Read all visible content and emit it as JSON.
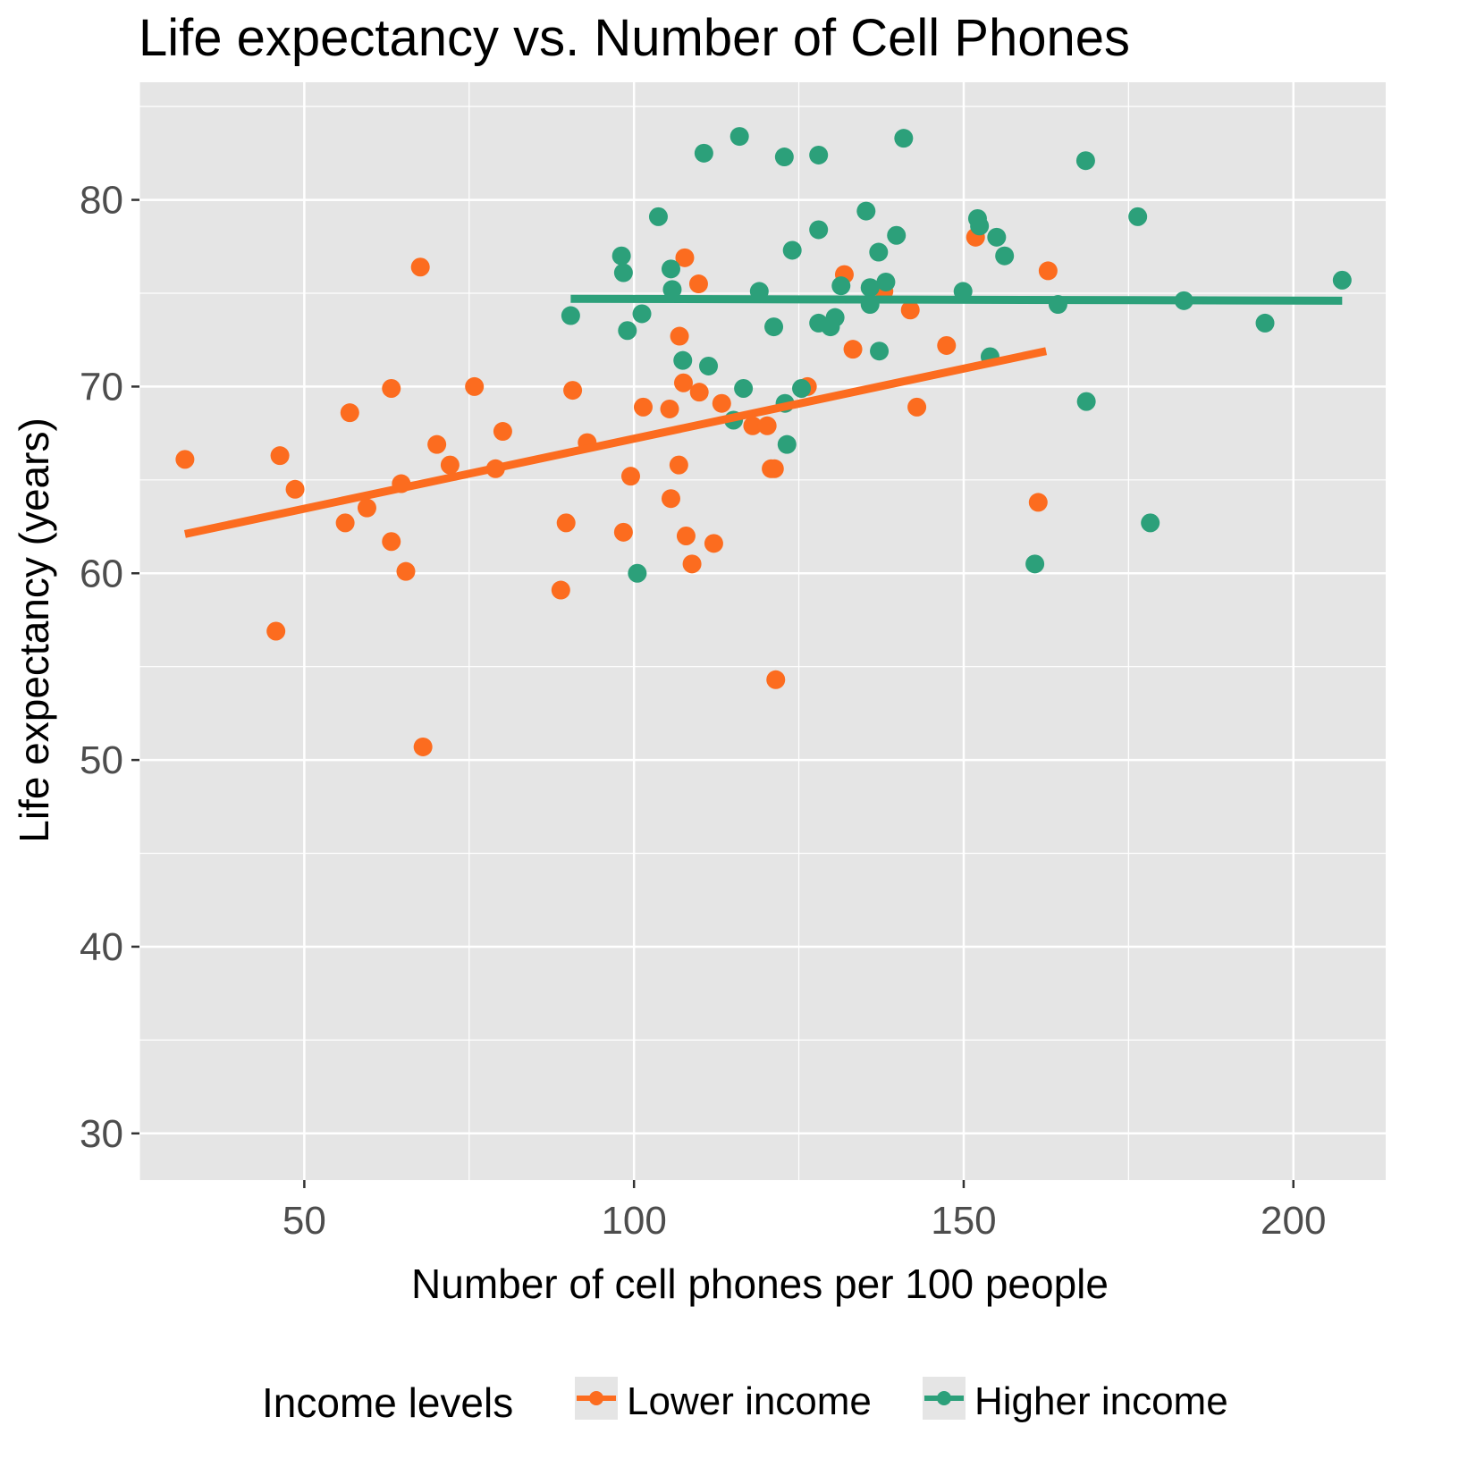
{
  "chart_data": {
    "type": "scatter",
    "title": "Life expectancy vs. Number of Cell Phones",
    "xlabel": "Number of cell phones per 100 people",
    "ylabel": "Life expectancy (years)",
    "xlim": [
      25,
      214
    ],
    "ylim": [
      27.5,
      86.3
    ],
    "xticks": [
      50,
      100,
      150,
      200
    ],
    "xtick_labels": [
      "50",
      "100",
      "150",
      "200"
    ],
    "yticks": [
      30,
      40,
      50,
      60,
      70,
      80
    ],
    "ytick_labels": [
      "30",
      "40",
      "50",
      "60",
      "70",
      "80"
    ],
    "grid": true,
    "legend": {
      "title": "Income levels",
      "position": "bottom",
      "entries": [
        "Lower income",
        "Higher income"
      ]
    },
    "colors": {
      "panel": "#e5e5e5",
      "grid": "#ffffff",
      "Lower income": "#fc6c1f",
      "Higher income": "#2ca07a"
    },
    "series": [
      {
        "name": "Lower income",
        "points": [
          [
            31.9,
            66.1
          ],
          [
            46.3,
            66.3
          ],
          [
            45.7,
            56.9
          ],
          [
            48.6,
            64.5
          ],
          [
            56.9,
            68.6
          ],
          [
            56.2,
            62.7
          ],
          [
            59.5,
            63.5
          ],
          [
            63.2,
            69.9
          ],
          [
            64.7,
            64.8
          ],
          [
            63.2,
            61.7
          ],
          [
            65.4,
            60.1
          ],
          [
            67.6,
            76.4
          ],
          [
            68.0,
            50.7
          ],
          [
            70.1,
            66.9
          ],
          [
            72.1,
            65.8
          ],
          [
            75.8,
            70.0
          ],
          [
            79.0,
            65.6
          ],
          [
            80.1,
            67.6
          ],
          [
            88.9,
            59.1
          ],
          [
            89.7,
            62.7
          ],
          [
            90.7,
            69.8
          ],
          [
            92.9,
            67.0
          ],
          [
            98.4,
            62.2
          ],
          [
            99.5,
            65.2
          ],
          [
            101.4,
            68.9
          ],
          [
            105.4,
            68.8
          ],
          [
            105.6,
            64.0
          ],
          [
            106.8,
            65.8
          ],
          [
            106.9,
            72.7
          ],
          [
            107.7,
            76.9
          ],
          [
            107.5,
            70.2
          ],
          [
            107.9,
            62.0
          ],
          [
            108.8,
            60.5
          ],
          [
            109.8,
            75.5
          ],
          [
            109.9,
            69.7
          ],
          [
            112.1,
            61.6
          ],
          [
            113.3,
            69.1
          ],
          [
            118.0,
            67.9
          ],
          [
            120.2,
            67.9
          ],
          [
            120.8,
            65.6
          ],
          [
            121.3,
            65.6
          ],
          [
            121.5,
            54.3
          ],
          [
            126.3,
            70.0
          ],
          [
            131.9,
            76.0
          ],
          [
            133.2,
            72.0
          ],
          [
            137.9,
            75.1
          ],
          [
            141.9,
            74.1
          ],
          [
            142.9,
            68.9
          ],
          [
            147.4,
            72.2
          ],
          [
            151.8,
            78.0
          ],
          [
            161.3,
            63.8
          ],
          [
            162.8,
            76.2
          ]
        ],
        "trend": {
          "x": [
            31.9,
            162.5
          ],
          "y": [
            62.1,
            71.9
          ]
        }
      },
      {
        "name": "Higher income",
        "points": [
          [
            90.4,
            73.8
          ],
          [
            98.1,
            77.0
          ],
          [
            98.4,
            76.1
          ],
          [
            99.0,
            73.0
          ],
          [
            100.5,
            60.0
          ],
          [
            101.2,
            73.9
          ],
          [
            103.7,
            79.1
          ],
          [
            105.6,
            76.3
          ],
          [
            105.8,
            75.2
          ],
          [
            107.4,
            71.4
          ],
          [
            110.6,
            82.5
          ],
          [
            111.3,
            71.1
          ],
          [
            115.1,
            68.2
          ],
          [
            116.0,
            83.4
          ],
          [
            116.6,
            69.9
          ],
          [
            119.0,
            75.1
          ],
          [
            121.2,
            73.2
          ],
          [
            122.8,
            82.3
          ],
          [
            122.9,
            69.1
          ],
          [
            123.2,
            66.9
          ],
          [
            124.0,
            77.3
          ],
          [
            125.4,
            69.9
          ],
          [
            128.0,
            82.4
          ],
          [
            128.0,
            78.4
          ],
          [
            128.0,
            73.4
          ],
          [
            129.8,
            73.2
          ],
          [
            130.5,
            73.7
          ],
          [
            131.4,
            75.4
          ],
          [
            135.2,
            79.4
          ],
          [
            135.8,
            75.3
          ],
          [
            135.8,
            74.4
          ],
          [
            137.1,
            77.2
          ],
          [
            137.2,
            71.9
          ],
          [
            138.2,
            75.6
          ],
          [
            139.8,
            78.1
          ],
          [
            140.9,
            83.3
          ],
          [
            149.9,
            75.1
          ],
          [
            152.1,
            79.0
          ],
          [
            152.4,
            78.6
          ],
          [
            154.0,
            71.6
          ],
          [
            155.0,
            78.0
          ],
          [
            156.2,
            77.0
          ],
          [
            160.8,
            60.5
          ],
          [
            164.3,
            74.4
          ],
          [
            168.5,
            82.1
          ],
          [
            168.6,
            69.2
          ],
          [
            176.4,
            79.1
          ],
          [
            178.3,
            62.7
          ],
          [
            183.4,
            74.6
          ],
          [
            195.7,
            73.4
          ],
          [
            207.4,
            75.7
          ]
        ],
        "trend": {
          "x": [
            90.4,
            207.4
          ],
          "y": [
            74.7,
            74.6
          ]
        }
      }
    ]
  }
}
